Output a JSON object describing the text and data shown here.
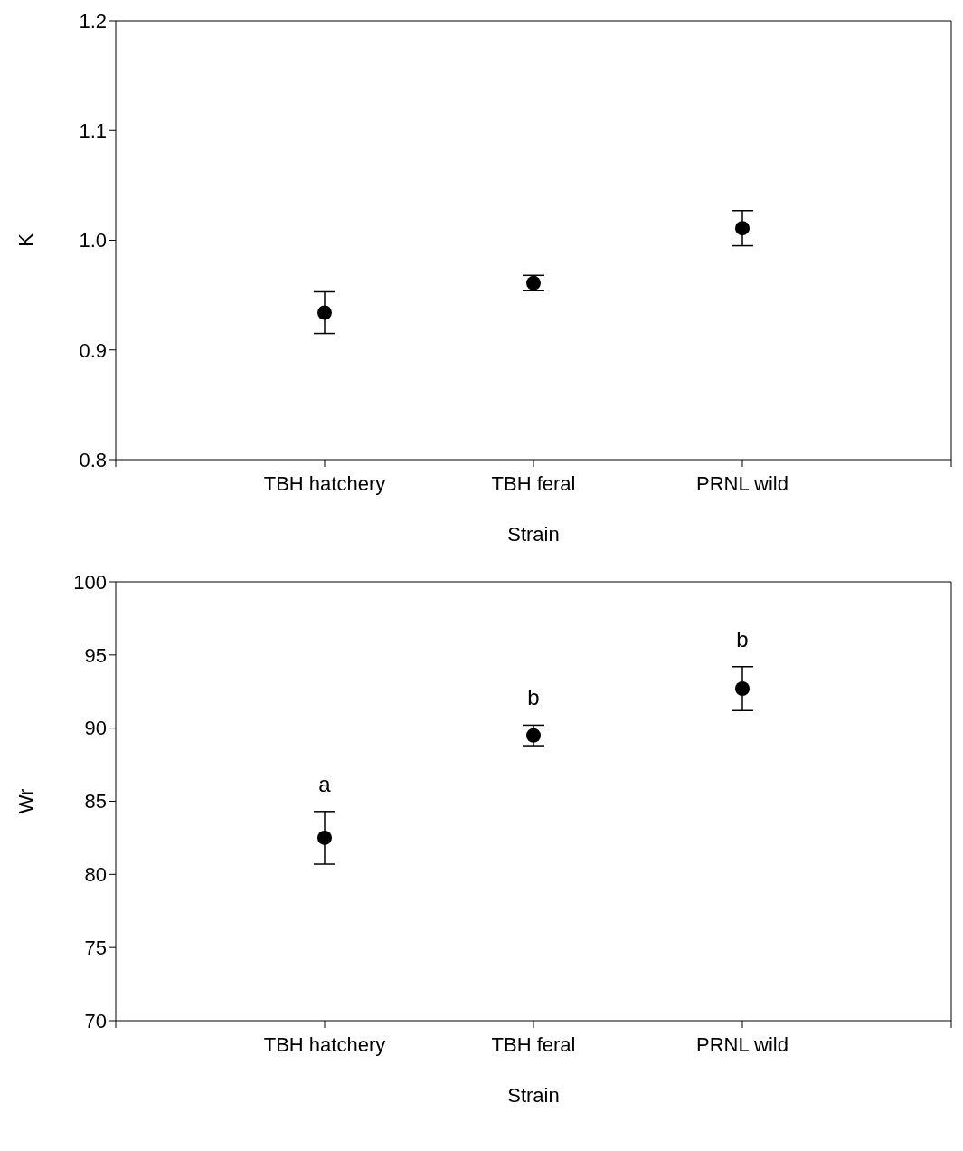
{
  "chart_data": [
    {
      "type": "scatter",
      "xlabel": "Strain",
      "ylabel": "K",
      "categories": [
        "TBH hatchery",
        "TBH feral",
        "PRNL wild"
      ],
      "values": [
        0.934,
        0.961,
        1.011
      ],
      "errors": [
        0.019,
        0.007,
        0.016
      ],
      "color": "#000000",
      "marker": "circle",
      "ylim": [
        0.8,
        1.2
      ],
      "yticks": [
        {
          "value": 0.8,
          "label": "0.8"
        },
        {
          "value": 0.9,
          "label": "0.9"
        },
        {
          "value": 1.0,
          "label": "1.0"
        },
        {
          "value": 1.1,
          "label": "1.1"
        },
        {
          "value": 1.2,
          "label": "1.2"
        }
      ],
      "grid": false,
      "legend": false
    },
    {
      "type": "scatter",
      "xlabel": "Strain",
      "ylabel": "Wr",
      "categories": [
        "TBH hatchery",
        "TBH feral",
        "PRNL wild"
      ],
      "values": [
        82.5,
        89.5,
        92.7
      ],
      "errors": [
        1.8,
        0.7,
        1.5
      ],
      "color": "#000000",
      "marker": "circle",
      "ylim": [
        70,
        100
      ],
      "yticks": [
        70,
        75,
        80,
        85,
        90,
        95,
        100
      ],
      "grid": false,
      "legend": false,
      "annotations": [
        "a",
        "b",
        "b"
      ]
    }
  ]
}
